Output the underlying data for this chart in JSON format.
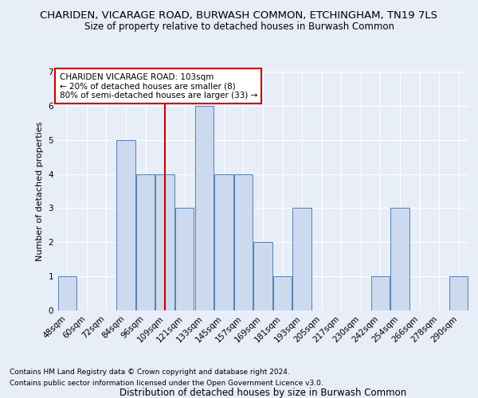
{
  "title": "CHARIDEN, VICARAGE ROAD, BURWASH COMMON, ETCHINGHAM, TN19 7LS",
  "subtitle": "Size of property relative to detached houses in Burwash Common",
  "xlabel": "Distribution of detached houses by size in Burwash Common",
  "ylabel": "Number of detached properties",
  "footnote1": "Contains HM Land Registry data © Crown copyright and database right 2024.",
  "footnote2": "Contains public sector information licensed under the Open Government Licence v3.0.",
  "categories": [
    "48sqm",
    "60sqm",
    "72sqm",
    "84sqm",
    "96sqm",
    "109sqm",
    "121sqm",
    "133sqm",
    "145sqm",
    "157sqm",
    "169sqm",
    "181sqm",
    "193sqm",
    "205sqm",
    "217sqm",
    "230sqm",
    "242sqm",
    "254sqm",
    "266sqm",
    "278sqm",
    "290sqm"
  ],
  "values": [
    1,
    0,
    0,
    5,
    4,
    4,
    3,
    6,
    4,
    4,
    2,
    1,
    3,
    0,
    0,
    0,
    1,
    3,
    0,
    0,
    1
  ],
  "bar_color": "#ccd9ee",
  "bar_edge_color": "#5580b0",
  "bar_edge_width": 0.7,
  "red_line_index": 5,
  "red_line_color": "#cc0000",
  "annotation_text": "CHARIDEN VICARAGE ROAD: 103sqm\n← 20% of detached houses are smaller (8)\n80% of semi-detached houses are larger (33) →",
  "annotation_box_facecolor": "#ffffff",
  "annotation_box_edgecolor": "#cc0000",
  "ylim": [
    0,
    7
  ],
  "background_color": "#e8eef8",
  "grid_color": "#ffffff",
  "title_fontsize": 9.5,
  "subtitle_fontsize": 8.5,
  "ylabel_fontsize": 8,
  "xlabel_fontsize": 8.5,
  "tick_fontsize": 7.5,
  "annotation_fontsize": 7.5,
  "footnote_fontsize": 6.5
}
